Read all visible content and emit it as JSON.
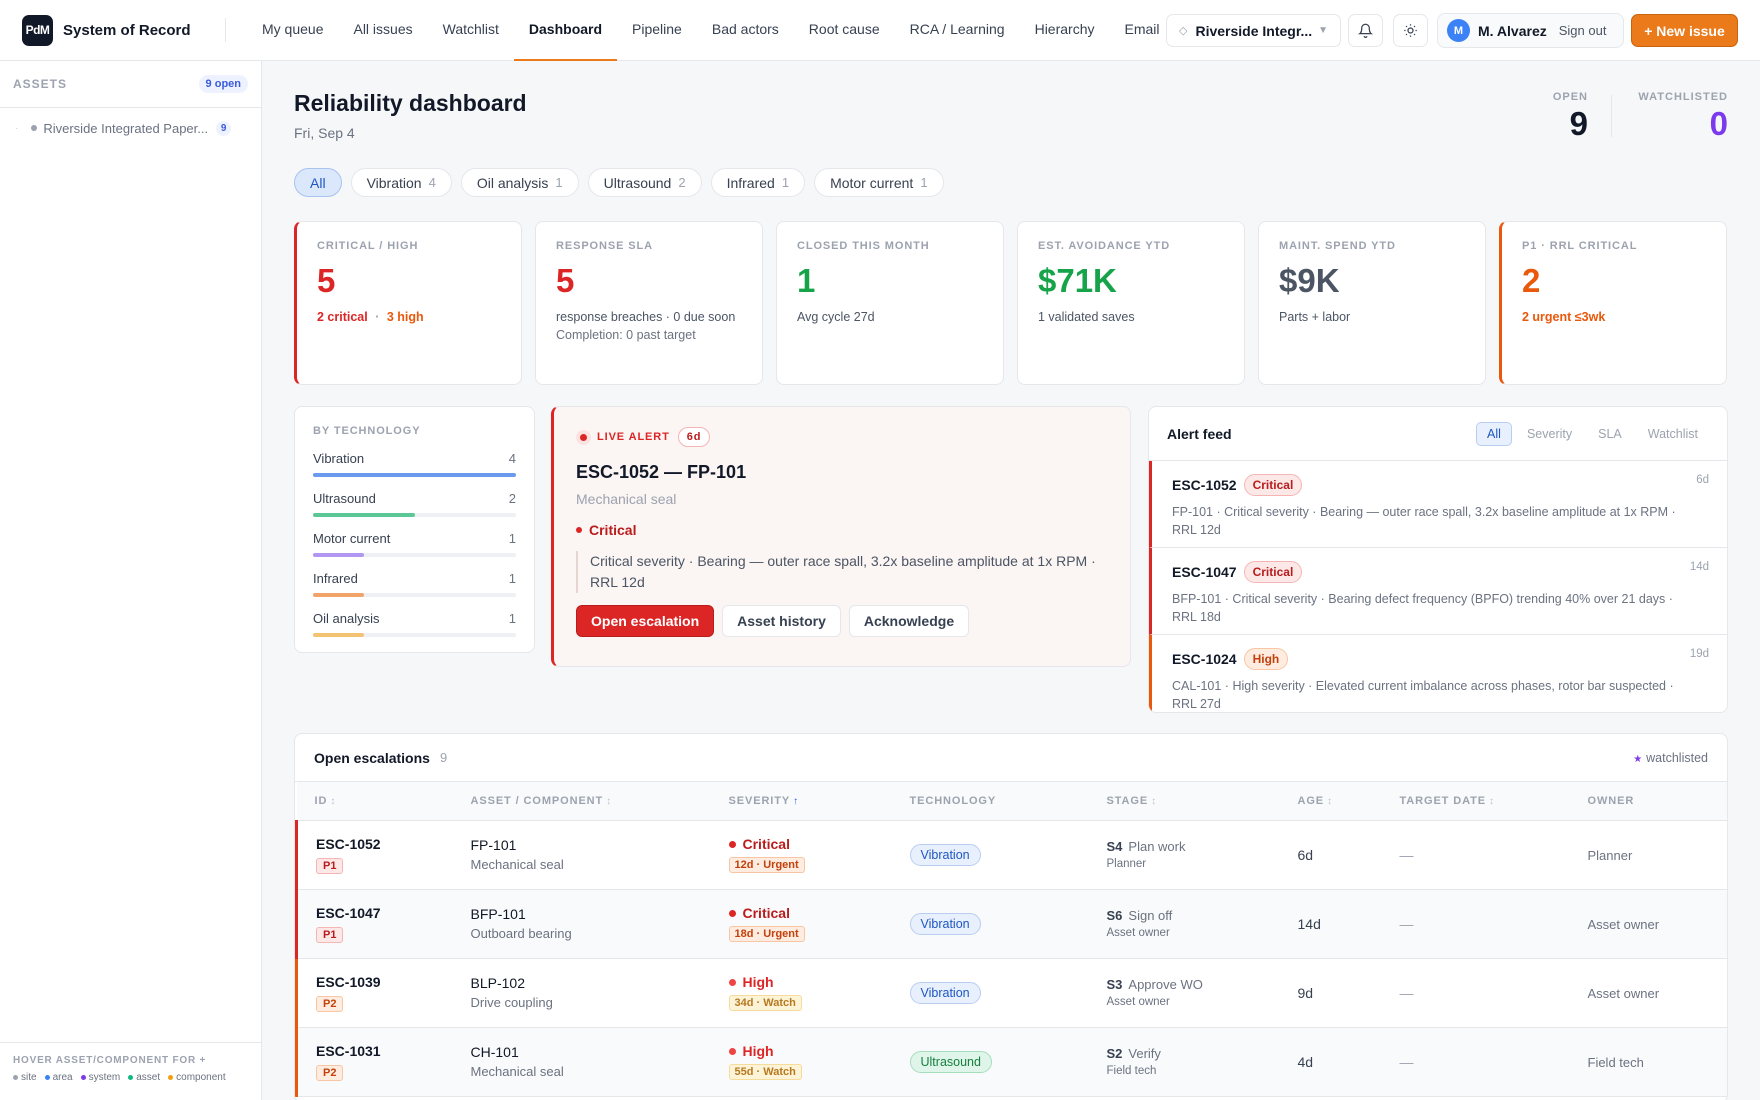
{
  "app": {
    "logo": "PdM",
    "title": "System of Record"
  },
  "nav": [
    "My queue",
    "All issues",
    "Watchlist",
    "Dashboard",
    "Pipeline",
    "Bad actors",
    "Root cause",
    "RCA / Learning",
    "Hierarchy",
    "Email"
  ],
  "nav_active": "Dashboard",
  "site_select": "Riverside Integr...",
  "user": {
    "initial": "M",
    "name": "M. Alvarez",
    "signout": "Sign out"
  },
  "new_issue": "+ New issue",
  "sidebar": {
    "title": "ASSETS",
    "badge": "9 open",
    "items": [
      {
        "label": "Riverside Integrated Paper...",
        "count": "9"
      }
    ],
    "footer_hint": "HOVER ASSET/COMPONENT FOR +",
    "legend": [
      {
        "label": "site",
        "color": "#9ca3af"
      },
      {
        "label": "area",
        "color": "#3b82f6"
      },
      {
        "label": "system",
        "color": "#7c3aed"
      },
      {
        "label": "asset",
        "color": "#10b981"
      },
      {
        "label": "component",
        "color": "#f59e0b"
      }
    ]
  },
  "page": {
    "title": "Reliability dashboard",
    "date": "Fri, Sep 4"
  },
  "stats": {
    "open_label": "OPEN",
    "open_value": "9",
    "watch_label": "WATCHLISTED",
    "watch_value": "0"
  },
  "filters": [
    {
      "label": "All",
      "count": ""
    },
    {
      "label": "Vibration",
      "count": "4"
    },
    {
      "label": "Oil analysis",
      "count": "1"
    },
    {
      "label": "Ultrasound",
      "count": "2"
    },
    {
      "label": "Infrared",
      "count": "1"
    },
    {
      "label": "Motor current",
      "count": "1"
    }
  ],
  "kpis": [
    {
      "label": "CRITICAL / HIGH",
      "value": "5",
      "sub_a": "2 critical",
      "sep": "·",
      "sub_b": "3 high"
    },
    {
      "label": "RESPONSE SLA",
      "value": "5",
      "sub": "response breaches · 0 due soon",
      "sub2": "Completion: 0 past target"
    },
    {
      "label": "CLOSED THIS MONTH",
      "value": "1",
      "sub": "Avg cycle 27d"
    },
    {
      "label": "EST. AVOIDANCE YTD",
      "value": "$71K",
      "sub": "1 validated saves"
    },
    {
      "label": "MAINT. SPEND YTD",
      "value": "$9K",
      "sub": "Parts + labor"
    },
    {
      "label": "P1 · RRL CRITICAL",
      "value": "2",
      "sub": "2 urgent ≤3wk"
    }
  ],
  "by_technology": {
    "title": "BY TECHNOLOGY",
    "rows": [
      {
        "label": "Vibration",
        "count": "4",
        "fraction": 1.0,
        "color": "#6b9bef"
      },
      {
        "label": "Ultrasound",
        "count": "2",
        "fraction": 0.5,
        "color": "#5cc796"
      },
      {
        "label": "Motor current",
        "count": "1",
        "fraction": 0.25,
        "color": "#b196f2"
      },
      {
        "label": "Infrared",
        "count": "1",
        "fraction": 0.25,
        "color": "#f2a36a"
      },
      {
        "label": "Oil analysis",
        "count": "1",
        "fraction": 0.25,
        "color": "#f4c273"
      }
    ]
  },
  "live_alert": {
    "tag": "LIVE ALERT",
    "age": "6d",
    "title": "ESC-1052 — FP-101",
    "subtitle": "Mechanical seal",
    "severity": "Critical",
    "description": "Critical severity · Bearing — outer race spall, 3.2x baseline amplitude at 1x RPM · RRL 12d",
    "buttons": [
      "Open escalation",
      "Asset history",
      "Acknowledge"
    ]
  },
  "alert_feed": {
    "title": "Alert feed",
    "tabs": [
      "All",
      "Severity",
      "SLA",
      "Watchlist"
    ],
    "items": [
      {
        "id": "ESC-1052",
        "sev": "Critical",
        "age": "6d",
        "desc": "FP-101 · Critical severity · Bearing — outer race spall, 3.2x baseline amplitude at 1x RPM · RRL 12d"
      },
      {
        "id": "ESC-1047",
        "sev": "Critical",
        "age": "14d",
        "desc": "BFP-101 · Critical severity · Bearing defect frequency (BPFO) trending 40% over 21 days · RRL 18d"
      },
      {
        "id": "ESC-1024",
        "sev": "High",
        "age": "19d",
        "desc": "CAL-101 · High severity · Elevated current imbalance across phases, rotor bar suspected · RRL 27d"
      }
    ]
  },
  "escalations": {
    "title": "Open escalations",
    "count": "9",
    "watch_legend": "watchlisted",
    "columns": [
      "ID",
      "ASSET / COMPONENT",
      "SEVERITY",
      "TECHNOLOGY",
      "STAGE",
      "AGE",
      "TARGET DATE",
      "OWNER"
    ],
    "rows": [
      {
        "id": "ESC-1052",
        "prio": "P1",
        "asset": "FP-101",
        "comp": "Mechanical seal",
        "sev": "Critical",
        "sla": "12d · Urgent",
        "tech": "Vibration",
        "stage_code": "S4",
        "stage": "Plan work",
        "role": "Planner",
        "age": "6d",
        "target": "—",
        "owner": "Planner"
      },
      {
        "id": "ESC-1047",
        "prio": "P1",
        "asset": "BFP-101",
        "comp": "Outboard bearing",
        "sev": "Critical",
        "sla": "18d · Urgent",
        "tech": "Vibration",
        "stage_code": "S6",
        "stage": "Sign off",
        "role": "Asset owner",
        "age": "14d",
        "target": "—",
        "owner": "Asset owner"
      },
      {
        "id": "ESC-1039",
        "prio": "P2",
        "asset": "BLP-102",
        "comp": "Drive coupling",
        "sev": "High",
        "sla": "34d · Watch",
        "tech": "Vibration",
        "stage_code": "S3",
        "stage": "Approve WO",
        "role": "Asset owner",
        "age": "9d",
        "target": "—",
        "owner": "Asset owner"
      },
      {
        "id": "ESC-1031",
        "prio": "P2",
        "asset": "CH-101",
        "comp": "Mechanical seal",
        "sev": "High",
        "sla": "55d · Watch",
        "tech": "Ultrasound",
        "stage_code": "S2",
        "stage": "Verify",
        "role": "Field tech",
        "age": "4d",
        "target": "—",
        "owner": "Field tech"
      }
    ]
  }
}
